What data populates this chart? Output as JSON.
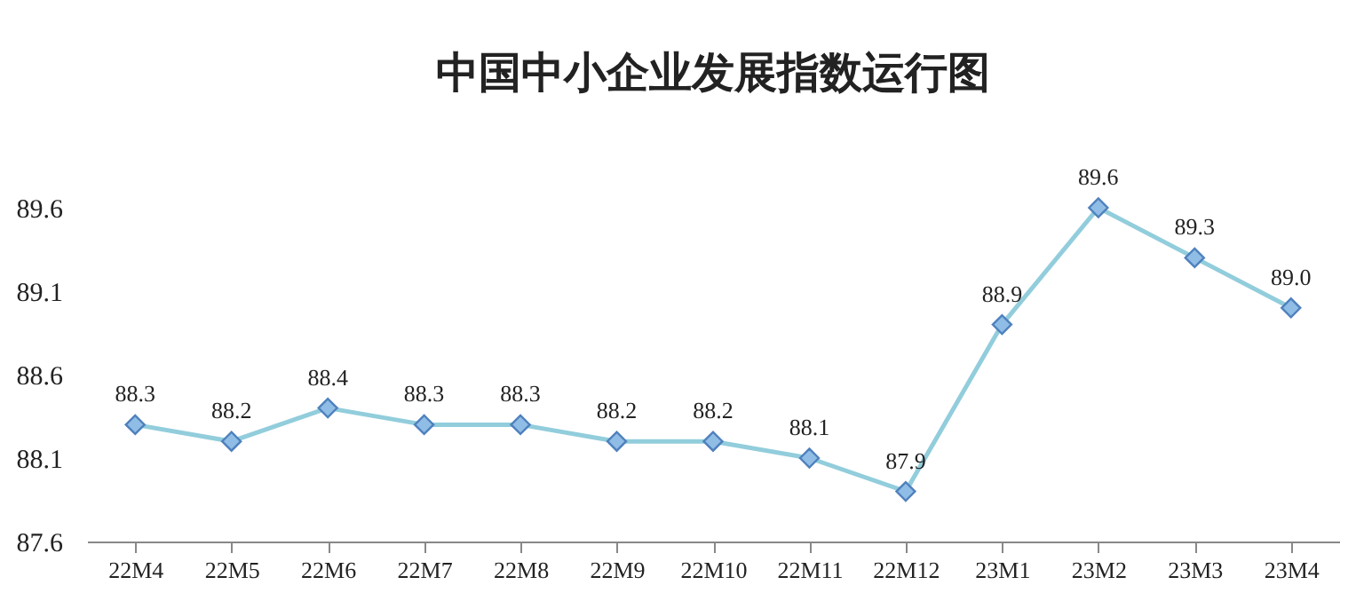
{
  "chart_data": {
    "type": "line",
    "title": "中国中小企业发展指数运行图",
    "categories": [
      "22M4",
      "22M5",
      "22M6",
      "22M7",
      "22M8",
      "22M9",
      "22M10",
      "22M11",
      "22M12",
      "23M1",
      "23M2",
      "23M3",
      "23M4"
    ],
    "series": [
      {
        "color": "#92cddc",
        "values": [
          88.3,
          88.2,
          88.4,
          88.3,
          88.3,
          88.2,
          88.2,
          88.1,
          87.9,
          88.9,
          89.6,
          89.3,
          89.0
        ],
        "value_labels": [
          "88.3",
          "88.2",
          "88.4",
          "88.3",
          "88.3",
          "88.2",
          "88.2",
          "88.1",
          "87.9",
          "88.9",
          "89.6",
          "89.3",
          "89.0"
        ]
      }
    ],
    "ylim": [
      87.6,
      89.6
    ],
    "yticks": [
      87.6,
      88.1,
      88.6,
      89.1,
      89.6
    ],
    "marker": "diamond",
    "grid": false
  }
}
